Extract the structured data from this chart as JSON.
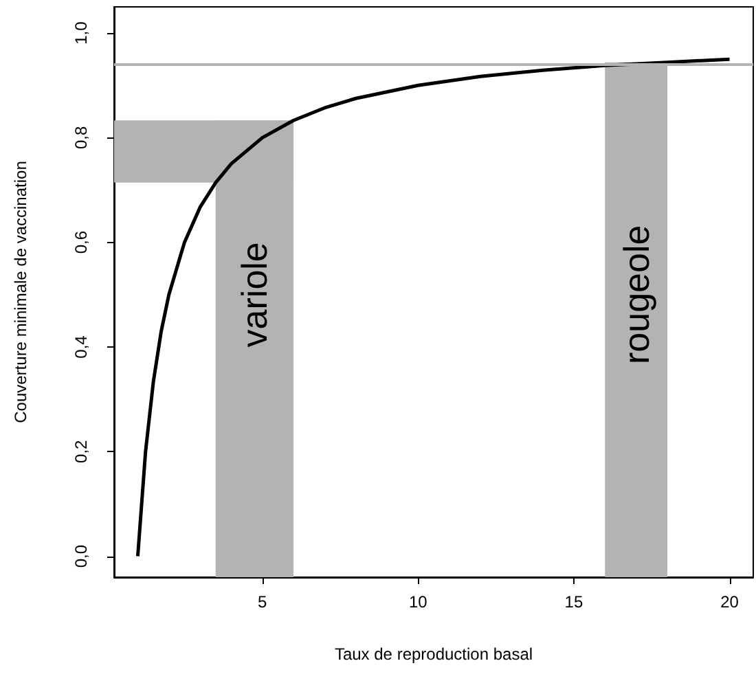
{
  "chart_data": {
    "type": "line",
    "xlabel": "Taux de reproduction basal",
    "ylabel": "Couverture minimale de vaccination",
    "series": [
      {
        "color": "#000000",
        "x": [
          1,
          1.25,
          1.5,
          1.75,
          2,
          2.5,
          3,
          3.5,
          4,
          5,
          6,
          7,
          8,
          10,
          12,
          14,
          16,
          18,
          20
        ],
        "values": [
          0,
          0.2,
          0.333,
          0.429,
          0.5,
          0.6,
          0.667,
          0.714,
          0.75,
          0.8,
          0.833,
          0.857,
          0.875,
          0.9,
          0.917,
          0.929,
          0.938,
          0.944,
          0.95
        ]
      }
    ],
    "xlim": [
      0.24,
      20.76
    ],
    "ylim": [
      -0.04,
      1.05
    ],
    "xticks": [
      5,
      10,
      15,
      20
    ],
    "yticks": [
      {
        "value": 0,
        "label": "0,0"
      },
      {
        "value": 0.2,
        "label": "0,2"
      },
      {
        "value": 0.4,
        "label": "0,4"
      },
      {
        "value": 0.6,
        "label": "0,6"
      },
      {
        "value": 0.8,
        "label": "0,8"
      },
      {
        "value": 1,
        "label": "1,0"
      }
    ],
    "bands": [
      {
        "axis": "x",
        "from": 3.5,
        "to": 6,
        "label": "variole",
        "color": "#b3b3b3"
      },
      {
        "axis": "x",
        "from": 16,
        "to": 18,
        "label": "rougeole",
        "color": "#b3b3b3"
      },
      {
        "axis": "y",
        "from": 0.714,
        "to": 0.833,
        "color": "#b3b3b3"
      }
    ],
    "ref_lines": [
      {
        "axis": "y",
        "value": 0.94,
        "color": "#b3b3b3"
      }
    ],
    "grid": false,
    "marker": "none",
    "line_style": "solid"
  }
}
